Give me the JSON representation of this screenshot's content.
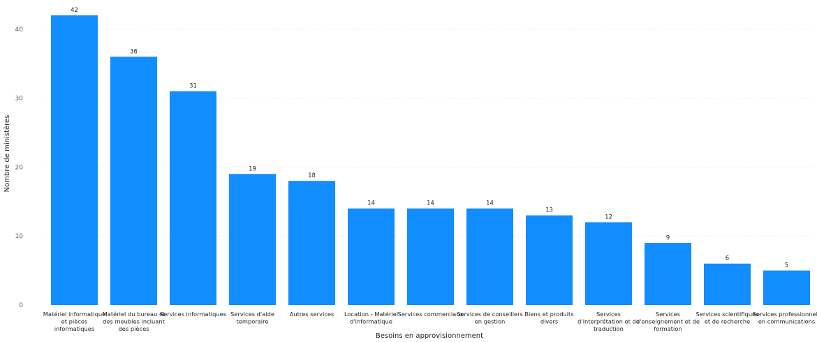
{
  "chart_data": {
    "type": "bar",
    "title": "",
    "xlabel": "Besoins en approvisionnement",
    "ylabel": "Nombre de ministères",
    "ylim": [
      0,
      42
    ],
    "yticks": [
      0,
      10,
      20,
      30,
      40
    ],
    "grid": true,
    "bar_color": "#118DFF",
    "categories": [
      [
        "Matériel informatique",
        "et pièces",
        "informatiques"
      ],
      [
        "Matériel du bureau et",
        "des meubles incluant",
        "des pièces"
      ],
      [
        "Services informatiques"
      ],
      [
        "Services d'aide",
        "temporaire"
      ],
      [
        "Autres services"
      ],
      [
        "Location - Matériel",
        "d'informatique"
      ],
      [
        "Services commerciaux"
      ],
      [
        "Services de conseillers",
        "en gestion"
      ],
      [
        "Biens et produits",
        "divers"
      ],
      [
        "Services",
        "d'interprétation et de",
        "traduction"
      ],
      [
        "Services",
        "d'enseignement et de",
        "formation"
      ],
      [
        "Services scientifiques",
        "et de recherche"
      ],
      [
        "Services professionnels",
        "en communications"
      ]
    ],
    "values": [
      42,
      36,
      31,
      19,
      18,
      14,
      14,
      14,
      13,
      12,
      9,
      6,
      5
    ]
  }
}
